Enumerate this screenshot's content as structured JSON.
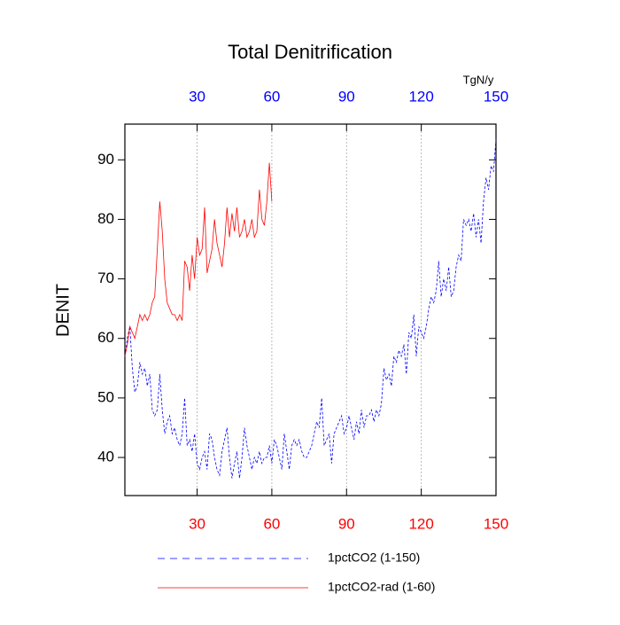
{
  "chart_data": {
    "type": "line",
    "title": "Total Denitrification",
    "ylabel": "DENIT",
    "top_axis_label": "TgN/y",
    "xlim": [
      1,
      150
    ],
    "ylim": [
      33.6,
      96
    ],
    "xticks": [
      30,
      60,
      90,
      120,
      150
    ],
    "yticks": [
      40,
      50,
      60,
      70,
      80,
      90
    ],
    "grid": "x",
    "top_tick_color": "#0000ff",
    "bottom_tick_color": "#ff0000",
    "series": [
      {
        "name": "1pctCO2 (1-150)",
        "color": "#0000ff",
        "dash": true,
        "x": [
          1,
          2,
          3,
          4,
          5,
          6,
          7,
          8,
          9,
          10,
          11,
          12,
          13,
          14,
          15,
          16,
          17,
          18,
          19,
          20,
          21,
          22,
          23,
          24,
          25,
          26,
          27,
          28,
          29,
          30,
          31,
          32,
          33,
          34,
          35,
          36,
          37,
          38,
          39,
          40,
          41,
          42,
          43,
          44,
          45,
          46,
          47,
          48,
          49,
          50,
          51,
          52,
          53,
          54,
          55,
          56,
          57,
          58,
          59,
          60,
          61,
          62,
          63,
          64,
          65,
          66,
          67,
          68,
          69,
          70,
          71,
          72,
          73,
          74,
          75,
          76,
          77,
          78,
          79,
          80,
          81,
          82,
          83,
          84,
          85,
          86,
          87,
          88,
          89,
          90,
          91,
          92,
          93,
          94,
          95,
          96,
          97,
          98,
          99,
          100,
          101,
          102,
          103,
          104,
          105,
          106,
          107,
          108,
          109,
          110,
          111,
          112,
          113,
          114,
          115,
          116,
          117,
          118,
          119,
          120,
          121,
          122,
          123,
          124,
          125,
          126,
          127,
          128,
          129,
          130,
          131,
          132,
          133,
          134,
          135,
          136,
          137,
          138,
          139,
          140,
          141,
          142,
          143,
          144,
          145,
          146,
          147,
          148,
          149,
          150
        ],
        "values": [
          57,
          60,
          62,
          55,
          51,
          52,
          56,
          54,
          55,
          52,
          54,
          48,
          47,
          48,
          54,
          48,
          44,
          46,
          47,
          44,
          45,
          43,
          42,
          44,
          50,
          42,
          43,
          41,
          44,
          39,
          38,
          40,
          41,
          38,
          44,
          43,
          40,
          38,
          37,
          41,
          43,
          45,
          40,
          36.5,
          39,
          41,
          36.5,
          40,
          45,
          42,
          40,
          38,
          40,
          39,
          41,
          39,
          40,
          40,
          42,
          39,
          43,
          42,
          40,
          38,
          44,
          41,
          38,
          42,
          43,
          42,
          43,
          41,
          40,
          40,
          41,
          42,
          44,
          46,
          45,
          50,
          42,
          43,
          44,
          39,
          44,
          45,
          46,
          47,
          44,
          45,
          47,
          45,
          43,
          46,
          44,
          48,
          45,
          47,
          47,
          48,
          46,
          48,
          47,
          49,
          55,
          53,
          54,
          52,
          57,
          56,
          58,
          57,
          59,
          54,
          61,
          60,
          64,
          57,
          62,
          61,
          60,
          62,
          65,
          67,
          66,
          68,
          73,
          67,
          70,
          68,
          72,
          67,
          68,
          72,
          74,
          73,
          80,
          79,
          80,
          78,
          81,
          77,
          80,
          76,
          83,
          87,
          85,
          89,
          88,
          93.5
        ]
      },
      {
        "name": "1pctCO2-rad (1-60)",
        "color": "#ff0000",
        "dash": false,
        "x": [
          1,
          2,
          3,
          4,
          5,
          6,
          7,
          8,
          9,
          10,
          11,
          12,
          13,
          14,
          15,
          16,
          17,
          18,
          19,
          20,
          21,
          22,
          23,
          24,
          25,
          26,
          27,
          28,
          29,
          30,
          31,
          32,
          33,
          34,
          35,
          36,
          37,
          38,
          39,
          40,
          41,
          42,
          43,
          44,
          45,
          46,
          47,
          48,
          49,
          50,
          51,
          52,
          53,
          54,
          55,
          56,
          57,
          58,
          59,
          60
        ],
        "values": [
          57,
          59,
          62,
          61,
          60,
          62,
          64,
          63,
          64,
          63,
          64,
          66,
          67,
          75,
          83,
          78,
          70,
          66,
          65,
          64,
          64,
          63,
          64,
          63,
          73,
          72,
          68,
          74,
          70,
          77,
          74,
          75,
          82,
          71,
          73,
          75,
          80,
          76,
          74,
          72,
          76,
          82,
          77,
          81,
          78,
          82,
          77,
          78,
          80,
          77,
          78,
          80,
          77,
          78,
          85,
          80,
          79,
          83,
          89.5,
          83
        ]
      }
    ]
  }
}
